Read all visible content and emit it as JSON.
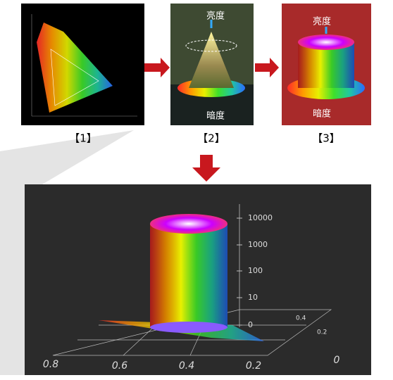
{
  "panels": [
    {
      "label": "【1】"
    },
    {
      "label": "【2】",
      "top": "亮度",
      "bottom": "暗度"
    },
    {
      "label": "【3】",
      "top": "亮度",
      "bottom": "暗度"
    }
  ],
  "plot": {
    "vertical_ticks": [
      "10000",
      "1000",
      "100",
      "10",
      "0"
    ],
    "x_ticks": [
      "0.8",
      "0.6",
      "0.4",
      "0.2",
      "0"
    ],
    "depth_ticks": [
      "0.4",
      "0.2"
    ]
  }
}
